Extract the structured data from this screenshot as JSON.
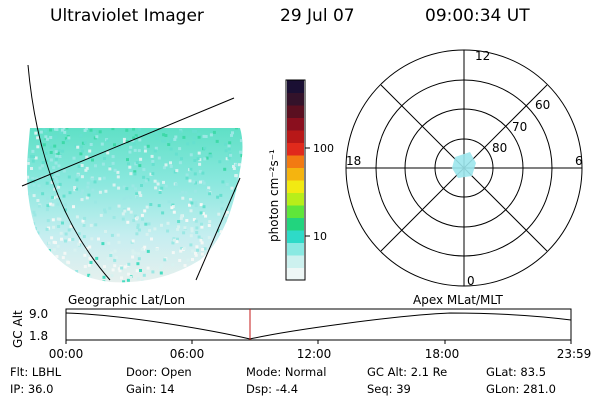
{
  "header": {
    "instrument": "Ultraviolet Imager",
    "date": "29 Jul 07",
    "time": "09:00:34 UT"
  },
  "colorbar": {
    "unit": "photon cm⁻²s⁻¹",
    "tick_100": "100",
    "tick_10": "10",
    "colors": [
      "#1a0f33",
      "#33122a",
      "#5a0f20",
      "#8a0f1e",
      "#b81818",
      "#e02a1c",
      "#f27a12",
      "#f5b40f",
      "#f2ea12",
      "#b8ee1a",
      "#5fe63a",
      "#22d47e",
      "#2edac8",
      "#8ae9e2",
      "#cdf1ef",
      "#eef7f6"
    ]
  },
  "polar": {
    "mlt_12": "12",
    "mlt_18": "18",
    "mlt_6": "6",
    "mlt_0": "0",
    "lat_60": "60",
    "lat_70": "70",
    "lat_80": "80"
  },
  "altitude_plot": {
    "ylabel": "GC Alt",
    "ytick_top": "9.0",
    "ytick_bottom": "1.8",
    "left_label": "Geographic Lat/Lon",
    "right_label": "Apex MLat/MLT",
    "xticks": [
      "00:00",
      "06:00",
      "12:00",
      "18:00",
      "23:59"
    ]
  },
  "info": {
    "filter": "Flt: LBHL",
    "ip": "IP: 36.0",
    "door": "Door: Open",
    "gain": "Gain: 14",
    "mode": "Mode: Normal",
    "dsp": "Dsp: -4.4",
    "gc_alt": "GC Alt: 2.1 Re",
    "seq": "Seq: 39",
    "glat": "GLat: 83.5",
    "glon": "GLon: 281.0"
  }
}
